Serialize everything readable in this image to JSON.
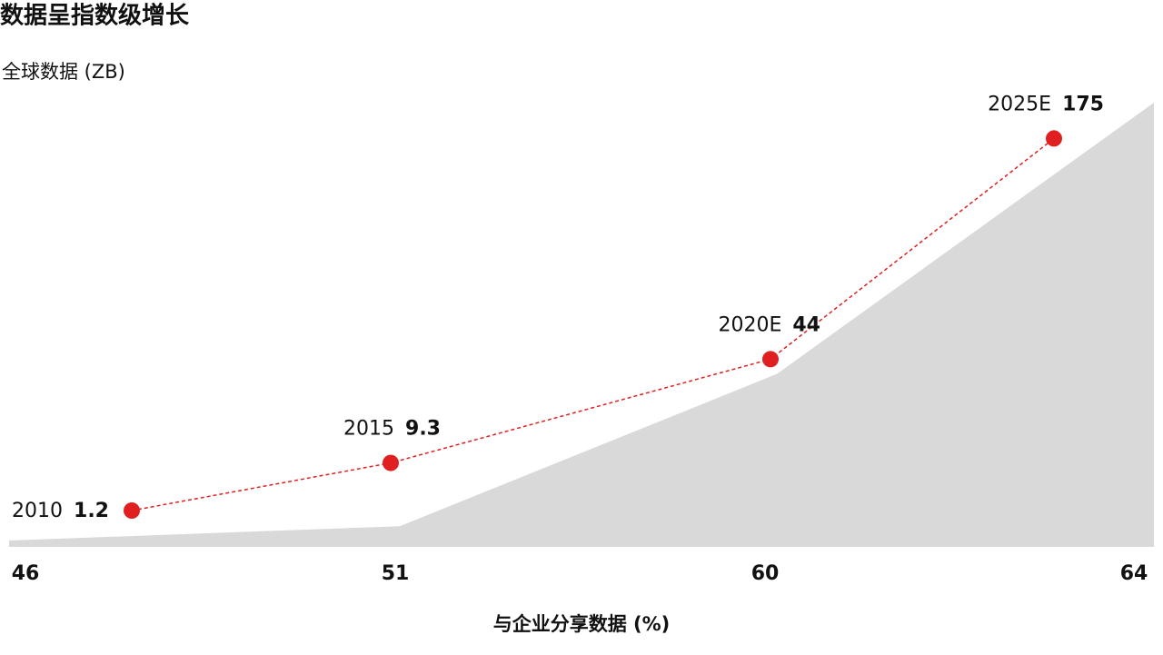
{
  "chart_data": {
    "type": "line",
    "title": "数据呈指数级增长",
    "subtitle": "全球数据 (ZB)",
    "categories": [
      "2010",
      "2015",
      "2020E",
      "2025E"
    ],
    "series": [
      {
        "values": [
          1.2,
          9.3,
          44,
          175
        ],
        "color": "#e02020"
      }
    ],
    "area": {
      "values": [
        46,
        51,
        60,
        64
      ],
      "color": "#d9d9d9"
    },
    "x_axis_label": "与企业分享数据 (%)"
  }
}
